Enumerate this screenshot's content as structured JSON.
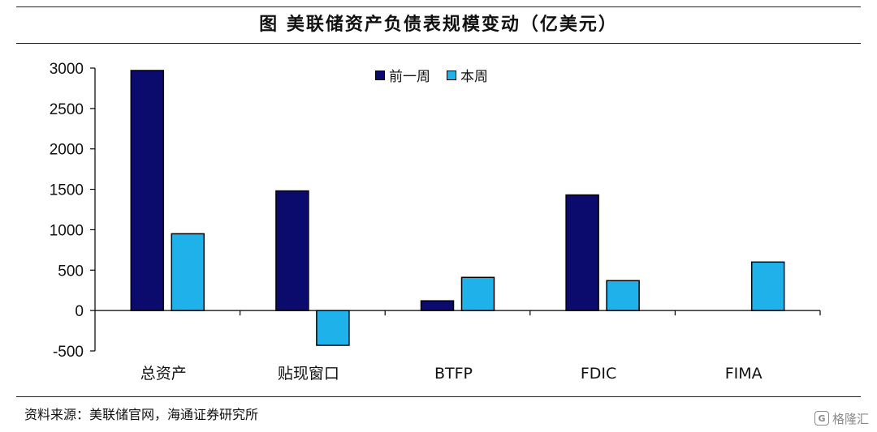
{
  "title": "图 美联储资产负债表规模变动（亿美元）",
  "source": "资料来源：美联储官网，海通证券研究所",
  "watermark": {
    "text": "格隆汇",
    "icon": "G"
  },
  "colors": {
    "prev": "#0b0b6e",
    "curr": "#1fb2ea"
  },
  "chart_data": {
    "type": "bar",
    "categories": [
      "总资产",
      "贴现窗口",
      "BTFP",
      "FDIC",
      "FIMA"
    ],
    "series": [
      {
        "name": "前一周",
        "values": [
          2970,
          1480,
          120,
          1430,
          0
        ]
      },
      {
        "name": "本周",
        "values": [
          950,
          -430,
          410,
          370,
          600
        ]
      }
    ],
    "ylim": [
      -500,
      3000
    ],
    "yticks": [
      3000,
      2500,
      2000,
      1500,
      1000,
      500,
      0,
      -500
    ],
    "legend": "top-center",
    "grid": false
  }
}
